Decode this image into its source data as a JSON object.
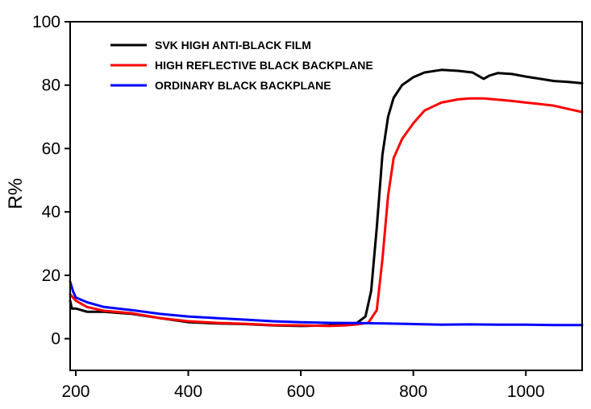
{
  "chart_data": {
    "type": "line",
    "ylabel": "R%",
    "xlabel": "",
    "xlim": [
      190,
      1100
    ],
    "ylim": [
      -10,
      100
    ],
    "x_ticks": [
      200,
      400,
      600,
      800,
      1000
    ],
    "y_ticks": [
      0,
      20,
      40,
      60,
      80,
      100
    ],
    "grid": false,
    "legend_position": "top-left",
    "series": [
      {
        "name": "SVK HIGH ANTI-BLACK FILM",
        "color": "#000000",
        "points": [
          [
            190,
            12
          ],
          [
            193,
            9.5
          ],
          [
            200,
            9.5
          ],
          [
            220,
            8.5
          ],
          [
            250,
            8.5
          ],
          [
            300,
            7.8
          ],
          [
            350,
            6.5
          ],
          [
            400,
            5.2
          ],
          [
            450,
            4.8
          ],
          [
            500,
            4.6
          ],
          [
            550,
            4.2
          ],
          [
            600,
            4.0
          ],
          [
            650,
            4.2
          ],
          [
            680,
            4.6
          ],
          [
            700,
            5.0
          ],
          [
            715,
            7
          ],
          [
            725,
            15
          ],
          [
            735,
            35
          ],
          [
            745,
            58
          ],
          [
            755,
            70
          ],
          [
            765,
            76
          ],
          [
            780,
            80
          ],
          [
            800,
            82.5
          ],
          [
            820,
            84
          ],
          [
            850,
            84.8
          ],
          [
            880,
            84.5
          ],
          [
            905,
            84
          ],
          [
            915,
            83
          ],
          [
            925,
            82
          ],
          [
            935,
            83
          ],
          [
            950,
            83.8
          ],
          [
            975,
            83.5
          ],
          [
            1000,
            82.7
          ],
          [
            1025,
            82
          ],
          [
            1050,
            81.3
          ],
          [
            1075,
            81
          ],
          [
            1100,
            80.6
          ]
        ]
      },
      {
        "name": "HIGH REFLECTIVE BLACK BACKPLANE",
        "color": "#ff0000",
        "points": [
          [
            190,
            14
          ],
          [
            195,
            13
          ],
          [
            200,
            12
          ],
          [
            220,
            10
          ],
          [
            250,
            8.8
          ],
          [
            300,
            8
          ],
          [
            350,
            6.5
          ],
          [
            400,
            5.5
          ],
          [
            450,
            5.0
          ],
          [
            500,
            4.7
          ],
          [
            550,
            4.3
          ],
          [
            600,
            4.2
          ],
          [
            650,
            4.0
          ],
          [
            680,
            4.2
          ],
          [
            700,
            4.5
          ],
          [
            720,
            5.0
          ],
          [
            735,
            9
          ],
          [
            745,
            25
          ],
          [
            755,
            45
          ],
          [
            765,
            57
          ],
          [
            780,
            63
          ],
          [
            800,
            68
          ],
          [
            820,
            72
          ],
          [
            850,
            74.5
          ],
          [
            880,
            75.5
          ],
          [
            900,
            75.8
          ],
          [
            925,
            75.8
          ],
          [
            950,
            75.4
          ],
          [
            975,
            75
          ],
          [
            1000,
            74.5
          ],
          [
            1025,
            74
          ],
          [
            1050,
            73.5
          ],
          [
            1075,
            72.5
          ],
          [
            1100,
            71.5
          ]
        ]
      },
      {
        "name": "ORDINARY BLACK BACKPLANE",
        "color": "#0000ff",
        "points": [
          [
            190,
            18
          ],
          [
            195,
            15
          ],
          [
            200,
            13
          ],
          [
            220,
            11.5
          ],
          [
            250,
            10
          ],
          [
            300,
            9
          ],
          [
            350,
            7.8
          ],
          [
            400,
            7
          ],
          [
            450,
            6.5
          ],
          [
            500,
            6.0
          ],
          [
            550,
            5.5
          ],
          [
            600,
            5.2
          ],
          [
            650,
            5.0
          ],
          [
            700,
            4.9
          ],
          [
            750,
            4.8
          ],
          [
            800,
            4.6
          ],
          [
            850,
            4.4
          ],
          [
            900,
            4.5
          ],
          [
            950,
            4.4
          ],
          [
            1000,
            4.4
          ],
          [
            1050,
            4.3
          ],
          [
            1100,
            4.3
          ]
        ]
      }
    ]
  }
}
